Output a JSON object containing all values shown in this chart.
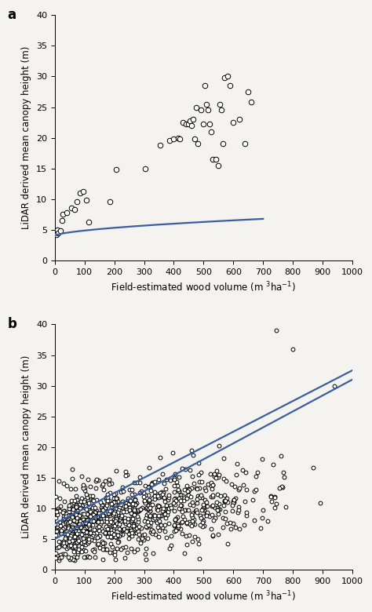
{
  "panel_a_scatter_x": [
    5,
    8,
    12,
    18,
    25,
    28,
    40,
    55,
    65,
    75,
    85,
    95,
    105,
    115,
    185,
    205,
    305,
    355,
    385,
    400,
    415,
    420,
    430,
    440,
    450,
    455,
    460,
    465,
    470,
    475,
    480,
    490,
    500,
    505,
    510,
    515,
    520,
    525,
    530,
    540,
    550,
    555,
    560,
    565,
    570,
    580,
    590,
    600,
    620,
    640,
    650,
    660
  ],
  "panel_a_scatter_y": [
    4.2,
    5.0,
    4.5,
    4.8,
    6.5,
    7.5,
    7.8,
    8.5,
    8.3,
    9.6,
    11.0,
    11.2,
    9.8,
    6.2,
    9.6,
    14.8,
    15.0,
    18.8,
    19.5,
    19.8,
    20.0,
    19.8,
    22.5,
    22.2,
    22.2,
    22.8,
    22.0,
    23.0,
    19.8,
    25.0,
    19.0,
    24.5,
    22.2,
    28.5,
    25.5,
    24.5,
    22.2,
    21.0,
    16.5,
    16.5,
    15.5,
    25.5,
    24.5,
    19.0,
    29.8,
    30.0,
    28.5,
    22.5,
    23.0,
    19.0,
    27.5,
    25.8
  ],
  "xlabel": "Field-estimated wood volume (m $^3$ha$^{-1}$)",
  "ylabel": "LiDAR derived mean canopy height (m)",
  "xlim": [
    0,
    1000
  ],
  "ylim": [
    0,
    40
  ],
  "xticks": [
    0,
    100,
    200,
    300,
    400,
    500,
    600,
    700,
    800,
    900,
    1000
  ],
  "yticks": [
    0,
    5,
    10,
    15,
    20,
    25,
    30,
    35,
    40
  ],
  "curve_color": "#3a5fa0",
  "scatter_facecolor": "white",
  "scatter_edgecolor": "black",
  "scatter_size_a": 22,
  "scatter_size_b": 12,
  "scatter_lw": 0.7,
  "curve_lw": 1.6,
  "background_color": "#f5f3f0",
  "panel_labels": [
    "a",
    "b"
  ],
  "curve_a_a": 4.0,
  "curve_a_b": 0.055,
  "curve_a_c": -3.8e-05,
  "curve_b_upper_a": 7.5,
  "curve_b_upper_b": 0.025,
  "curve_b_lower_a": 5.0,
  "curve_b_lower_b": 0.026
}
